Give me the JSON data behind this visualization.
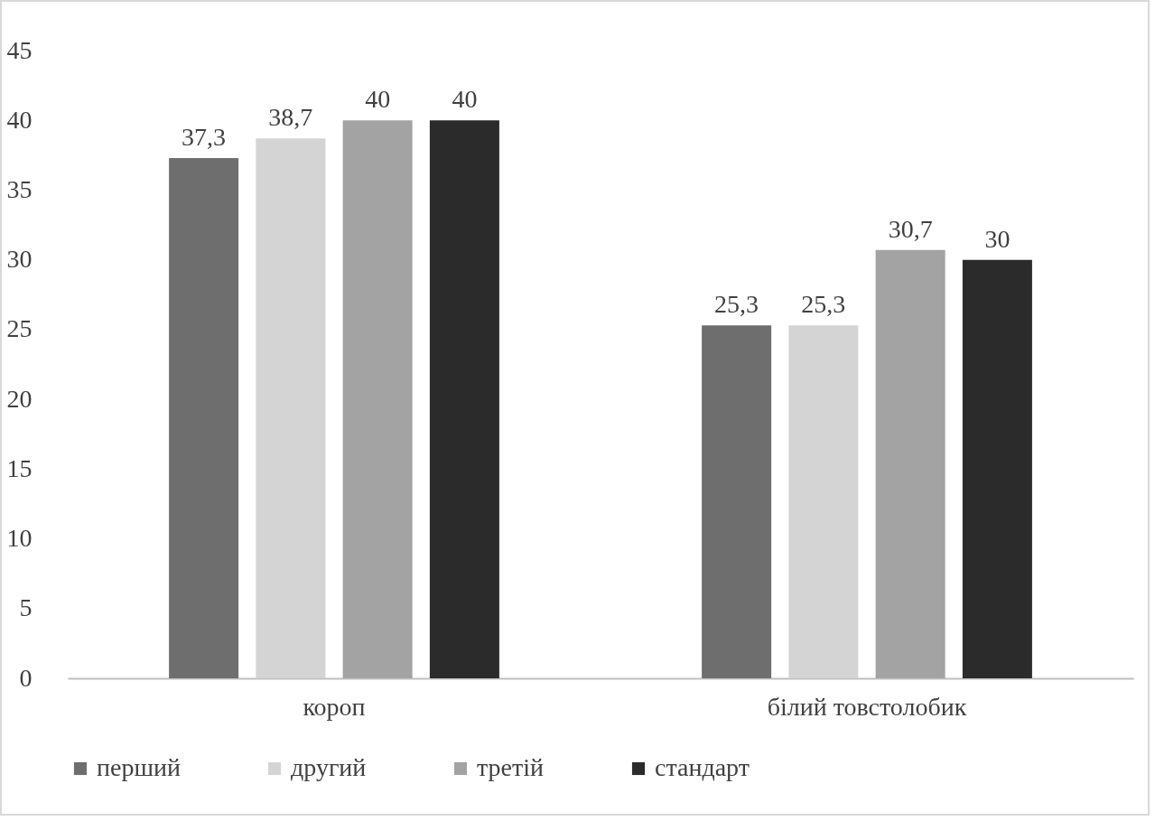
{
  "chart_data": {
    "type": "bar",
    "categories": [
      "короп",
      "білий товстолобик"
    ],
    "series": [
      {
        "name": "перший",
        "color": "#6e6e6e",
        "values": [
          37.3,
          25.3
        ],
        "value_labels": [
          "37,3",
          "25,3"
        ]
      },
      {
        "name": "другий",
        "color": "#d4d4d4",
        "values": [
          38.7,
          25.3
        ],
        "value_labels": [
          "38,7",
          "25,3"
        ]
      },
      {
        "name": "третій",
        "color": "#a3a3a3",
        "values": [
          40,
          30.7
        ],
        "value_labels": [
          "40",
          "30,7"
        ]
      },
      {
        "name": "стандарт",
        "color": "#2b2b2b",
        "values": [
          40,
          30
        ],
        "value_labels": [
          "40",
          "30"
        ]
      }
    ],
    "ylim": [
      0,
      45
    ],
    "yticks": [
      0,
      5,
      10,
      15,
      20,
      25,
      30,
      35,
      40,
      45
    ],
    "grid": false,
    "legend": "bottom"
  }
}
